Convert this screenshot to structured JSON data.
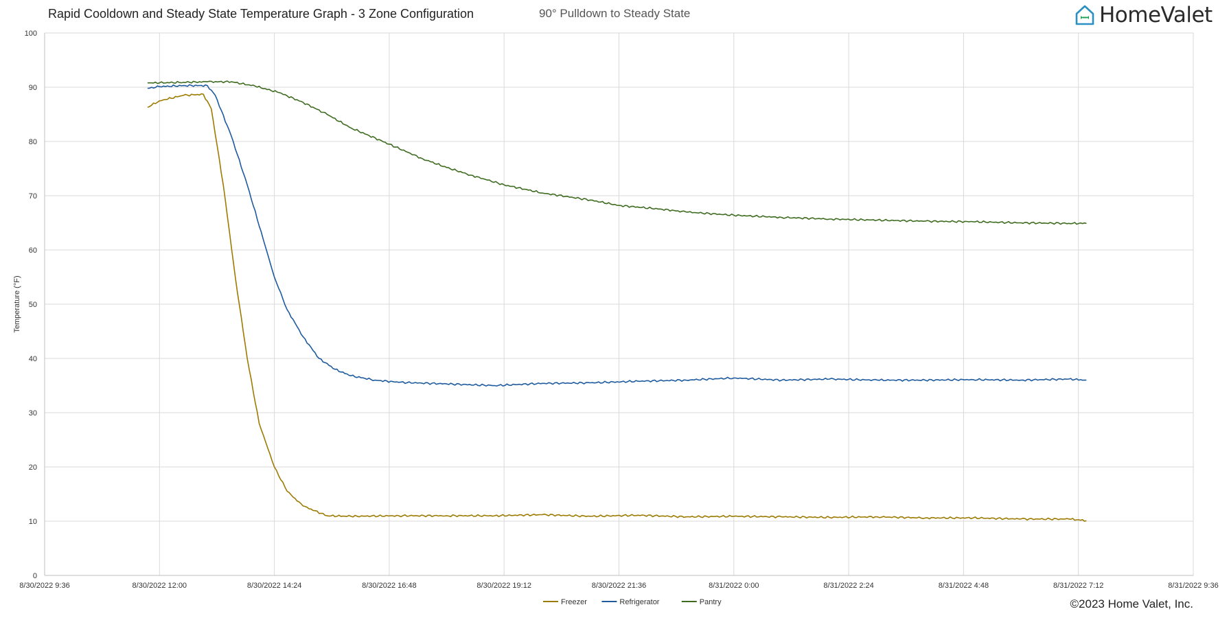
{
  "header": {
    "title": "Rapid Cooldown and Steady State Temperature Graph - 3 Zone Configuration",
    "subtitle": "90° Pulldown to Steady State",
    "brand": "HomeValet",
    "brand_icon": "house-logo-icon"
  },
  "footer": {
    "copyright": "©2023 Home Valet, Inc."
  },
  "chart_data": {
    "type": "line",
    "title": "Rapid Cooldown and Steady State Temperature Graph - 3 Zone Configuration",
    "xlabel": "",
    "ylabel": "Temperature (°F)",
    "ylim": [
      0,
      100
    ],
    "yticks": [
      "0",
      "10",
      "20",
      "30",
      "40",
      "50",
      "60",
      "70",
      "80",
      "90",
      "100"
    ],
    "xlim": [
      "8/30/2022 9:36",
      "8/31/2022 9:36"
    ],
    "xticks": [
      "8/30/2022 9:36",
      "8/30/2022 12:00",
      "8/30/2022 14:24",
      "8/30/2022 16:48",
      "8/30/2022 19:12",
      "8/30/2022 21:36",
      "8/31/2022 0:00",
      "8/31/2022 2:24",
      "8/31/2022 4:48",
      "8/31/2022 7:12",
      "8/31/2022 9:36"
    ],
    "grid": true,
    "legend": "bottom-center",
    "series": [
      {
        "name": "Freezer",
        "color": "#9c7a00",
        "x": [
          "8/30/2022 11:45",
          "8/30/2022 12:00",
          "8/30/2022 12:30",
          "8/30/2022 12:55",
          "8/30/2022 13:05",
          "8/30/2022 13:20",
          "8/30/2022 13:35",
          "8/30/2022 13:50",
          "8/30/2022 14:05",
          "8/30/2022 14:24",
          "8/30/2022 14:40",
          "8/30/2022 15:00",
          "8/30/2022 15:30",
          "8/30/2022 16:00",
          "8/30/2022 17:00",
          "8/30/2022 18:00",
          "8/30/2022 19:00",
          "8/30/2022 20:00",
          "8/30/2022 21:00",
          "8/30/2022 22:00",
          "8/30/2022 23:00",
          "8/31/2022 0:00",
          "8/31/2022 1:00",
          "8/31/2022 2:00",
          "8/31/2022 3:00",
          "8/31/2022 4:00",
          "8/31/2022 5:00",
          "8/31/2022 6:00",
          "8/31/2022 7:00",
          "8/31/2022 7:22"
        ],
        "y": [
          86.3,
          87.5,
          88.5,
          88.7,
          86.0,
          72.0,
          55.0,
          40.0,
          28.0,
          20.0,
          15.5,
          12.8,
          11.0,
          10.9,
          11.0,
          11.0,
          11.0,
          11.2,
          10.9,
          11.1,
          10.8,
          10.9,
          10.8,
          10.7,
          10.8,
          10.6,
          10.6,
          10.4,
          10.4,
          10.1
        ]
      },
      {
        "name": "Refrigerator",
        "color": "#1d5a9e",
        "x": [
          "8/30/2022 11:45",
          "8/30/2022 12:00",
          "8/30/2022 12:30",
          "8/30/2022 13:00",
          "8/30/2022 13:10",
          "8/30/2022 13:30",
          "8/30/2022 13:50",
          "8/30/2022 14:10",
          "8/30/2022 14:24",
          "8/30/2022 14:40",
          "8/30/2022 15:00",
          "8/30/2022 15:20",
          "8/30/2022 15:40",
          "8/30/2022 16:00",
          "8/30/2022 16:30",
          "8/30/2022 17:00",
          "8/30/2022 18:00",
          "8/30/2022 19:00",
          "8/30/2022 20:00",
          "8/30/2022 21:00",
          "8/30/2022 22:00",
          "8/30/2022 23:00",
          "8/31/2022 0:00",
          "8/31/2022 1:00",
          "8/31/2022 2:00",
          "8/31/2022 3:00",
          "8/31/2022 4:00",
          "8/31/2022 5:00",
          "8/31/2022 6:00",
          "8/31/2022 7:00",
          "8/31/2022 7:22"
        ],
        "y": [
          89.8,
          90.1,
          90.3,
          90.3,
          88.5,
          81.0,
          72.0,
          62.0,
          55.0,
          49.0,
          44.0,
          40.0,
          38.0,
          36.8,
          36.0,
          35.6,
          35.3,
          35.0,
          35.4,
          35.5,
          35.8,
          36.0,
          36.4,
          36.0,
          36.2,
          36.0,
          36.0,
          36.1,
          36.0,
          36.2,
          36.0
        ]
      },
      {
        "name": "Pantry",
        "color": "#3d6b1f",
        "x": [
          "8/30/2022 11:45",
          "8/30/2022 12:00",
          "8/30/2022 12:30",
          "8/30/2022 13:00",
          "8/30/2022 13:30",
          "8/30/2022 14:00",
          "8/30/2022 14:30",
          "8/30/2022 15:00",
          "8/30/2022 15:30",
          "8/30/2022 16:00",
          "8/30/2022 16:48",
          "8/30/2022 17:30",
          "8/30/2022 18:00",
          "8/30/2022 18:30",
          "8/30/2022 19:12",
          "8/30/2022 20:00",
          "8/30/2022 21:00",
          "8/30/2022 21:36",
          "8/30/2022 22:30",
          "8/30/2022 23:00",
          "8/31/2022 0:00",
          "8/31/2022 1:00",
          "8/31/2022 2:00",
          "8/31/2022 3:00",
          "8/31/2022 4:00",
          "8/31/2022 5:00",
          "8/31/2022 6:00",
          "8/31/2022 7:00",
          "8/31/2022 7:22"
        ],
        "y": [
          90.8,
          90.8,
          90.9,
          91.0,
          91.0,
          90.2,
          89.0,
          87.2,
          85.0,
          82.5,
          79.5,
          76.8,
          75.2,
          73.8,
          72.0,
          70.5,
          69.2,
          68.2,
          67.5,
          67.0,
          66.4,
          66.0,
          65.7,
          65.5,
          65.3,
          65.2,
          65.0,
          64.9,
          64.9
        ]
      }
    ]
  }
}
